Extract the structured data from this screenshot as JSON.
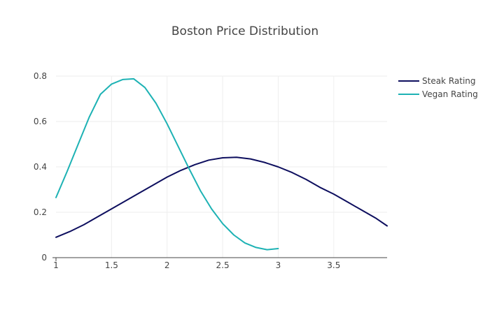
{
  "chart_data": {
    "type": "line",
    "title": "Boston Price Distribution",
    "xlabel": "",
    "ylabel": "",
    "xlim": [
      1,
      4
    ],
    "ylim": [
      0,
      0.8
    ],
    "x_ticks": [
      1,
      1.5,
      2,
      2.5,
      3,
      3.5
    ],
    "x_tick_labels": [
      "1",
      "1.5",
      "2",
      "2.5",
      "3",
      "3.5"
    ],
    "y_ticks": [
      0,
      0.2,
      0.4,
      0.6,
      0.8
    ],
    "y_tick_labels": [
      "0",
      "0.2",
      "0.4",
      "0.6",
      "0.8"
    ],
    "grid": true,
    "legend_position": "top-right",
    "series": [
      {
        "name": "Steak Rating",
        "color": "#0d0e5e",
        "x": [
          1.0,
          1.125,
          1.25,
          1.375,
          1.5,
          1.625,
          1.75,
          1.875,
          2.0,
          2.125,
          2.25,
          2.375,
          2.5,
          2.625,
          2.75,
          2.875,
          3.0,
          3.125,
          3.25,
          3.375,
          3.5,
          3.625,
          3.75,
          3.875,
          4.0
        ],
        "values": [
          0.09,
          0.115,
          0.145,
          0.18,
          0.215,
          0.25,
          0.285,
          0.32,
          0.355,
          0.385,
          0.41,
          0.43,
          0.44,
          0.442,
          0.435,
          0.42,
          0.4,
          0.375,
          0.345,
          0.31,
          0.28,
          0.245,
          0.21,
          0.175,
          0.14
        ]
      },
      {
        "name": "Vegan Rating",
        "color": "#1db2b4",
        "x": [
          1.0,
          1.1,
          1.2,
          1.3,
          1.4,
          1.5,
          1.6,
          1.7,
          1.8,
          1.9,
          2.0,
          2.1,
          2.2,
          2.3,
          2.4,
          2.5,
          2.6,
          2.7,
          2.8,
          2.9,
          3.0
        ],
        "values": [
          0.265,
          0.38,
          0.5,
          0.62,
          0.72,
          0.765,
          0.785,
          0.788,
          0.75,
          0.68,
          0.59,
          0.49,
          0.39,
          0.295,
          0.215,
          0.15,
          0.1,
          0.065,
          0.045,
          0.035,
          0.04
        ]
      }
    ]
  }
}
